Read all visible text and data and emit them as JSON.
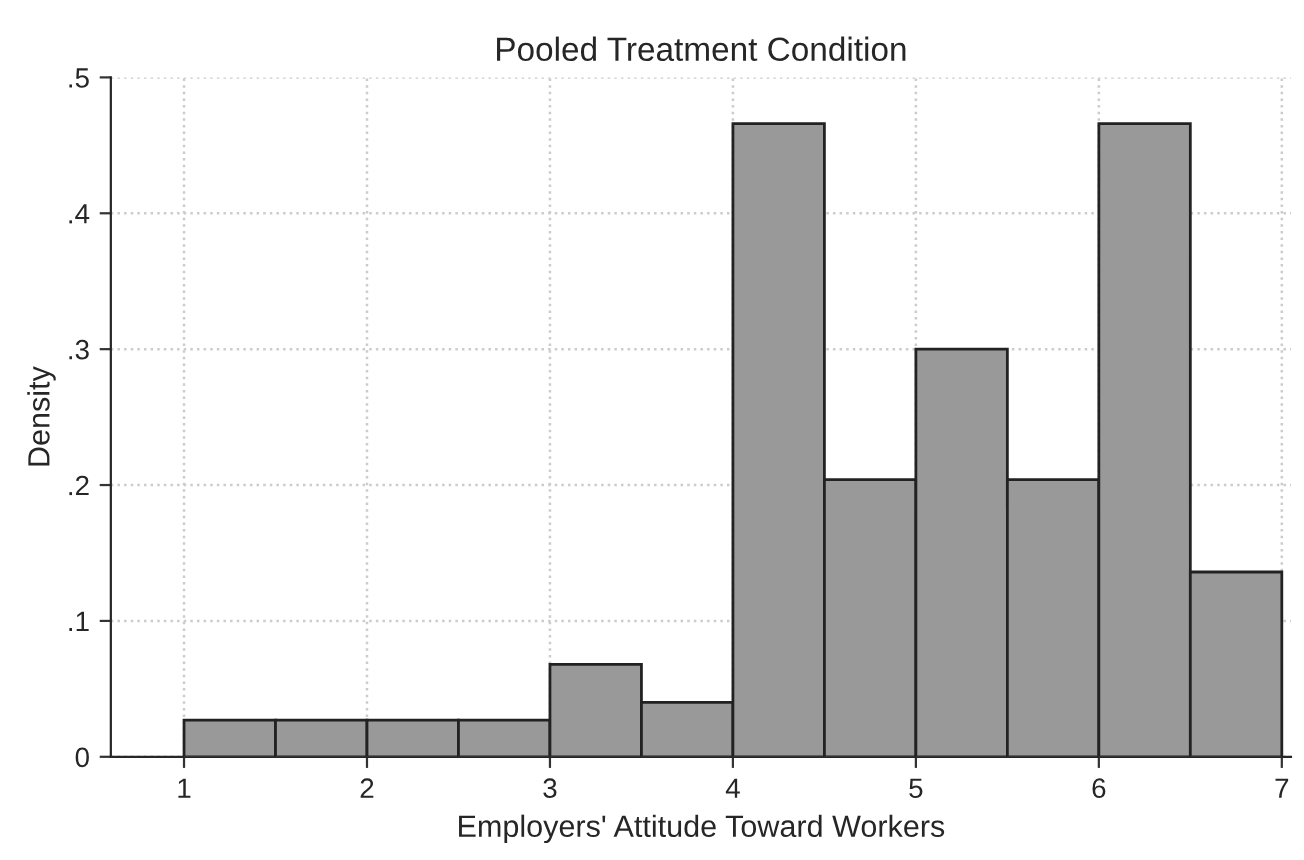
{
  "chart_data": {
    "type": "histogram",
    "title": "Pooled Treatment Condition",
    "xlabel": "Employers' Attitude Toward Workers",
    "ylabel": "Density",
    "bins": [
      1,
      1.5,
      2,
      2.5,
      3,
      3.5,
      4,
      4.5,
      5,
      5.5,
      6,
      6.5,
      7
    ],
    "values": [
      0.027,
      0.027,
      0.027,
      0.027,
      0.068,
      0.04,
      0.466,
      0.204,
      0.3,
      0.204,
      0.466,
      0.136
    ],
    "color": "#999999",
    "xlim": [
      0.6,
      7.05
    ],
    "xticks": [
      1,
      2,
      3,
      4,
      5,
      6,
      7
    ],
    "ylim": [
      0,
      0.5
    ],
    "yticks": [
      {
        "value": 0,
        "label": "0"
      },
      {
        "value": 0.1,
        "label": ".1"
      },
      {
        "value": 0.2,
        "label": ".2"
      },
      {
        "value": 0.3,
        "label": ".3"
      },
      {
        "value": 0.4,
        "label": ".4"
      },
      {
        "value": 0.5,
        "label": ".5"
      }
    ],
    "grid": true
  }
}
